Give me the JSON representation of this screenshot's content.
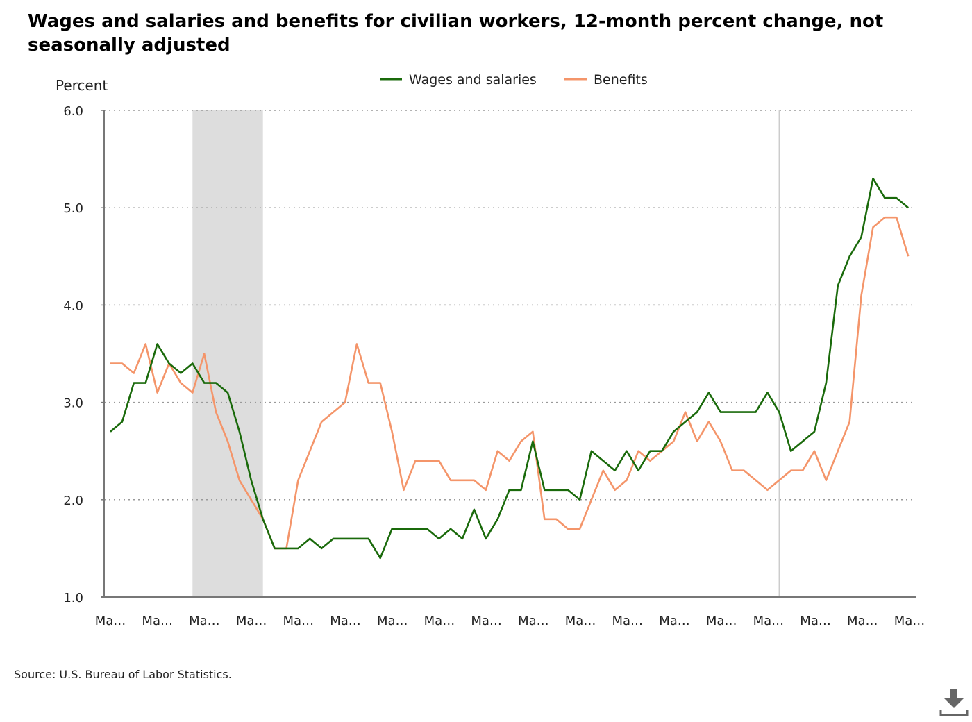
{
  "chart_data": {
    "type": "line",
    "title": "Wages and salaries and benefits for civilian workers, 12-month percent change, not seasonally adjusted",
    "ylabel": "Percent",
    "xlabel": "",
    "ylim": [
      1.0,
      6.0
    ],
    "yticks": [
      "1.0",
      "2.0",
      "3.0",
      "4.0",
      "5.0",
      "6.0"
    ],
    "x_tick_labels": [
      "Ma…",
      "Ma…",
      "Ma…",
      "Ma…",
      "Ma…",
      "Ma…",
      "Ma…",
      "Ma…",
      "Ma…",
      "Ma…",
      "Ma…",
      "Ma…",
      "Ma…",
      "Ma…",
      "Ma…",
      "Ma…",
      "Ma…",
      "Ma…"
    ],
    "grid": "horizontal dotted",
    "legend_position": "top-center",
    "shaded_period": {
      "start_index": 7.0,
      "end_index": 13.0
    },
    "reference_line_index": 57,
    "series": [
      {
        "name": "Wages and salaries",
        "color": "#1a6a0b",
        "values": [
          2.7,
          2.8,
          3.2,
          3.2,
          3.6,
          3.4,
          3.3,
          3.4,
          3.2,
          3.2,
          3.1,
          2.7,
          2.2,
          1.8,
          1.5,
          1.5,
          1.5,
          1.6,
          1.5,
          1.6,
          1.6,
          1.6,
          1.6,
          1.4,
          1.7,
          1.7,
          1.7,
          1.7,
          1.6,
          1.7,
          1.6,
          1.9,
          1.6,
          1.8,
          2.1,
          2.1,
          2.6,
          2.1,
          2.1,
          2.1,
          2.0,
          2.5,
          2.4,
          2.3,
          2.5,
          2.3,
          2.5,
          2.5,
          2.7,
          2.8,
          2.9,
          3.1,
          2.9,
          2.9,
          2.9,
          2.9,
          3.1,
          2.9,
          2.5,
          2.6,
          2.7,
          3.2,
          4.2,
          4.5,
          4.7,
          5.3,
          5.1,
          5.1,
          5.0
        ]
      },
      {
        "name": "Benefits",
        "color": "#f4956a",
        "values": [
          3.4,
          3.4,
          3.3,
          3.6,
          3.1,
          3.4,
          3.2,
          3.1,
          3.5,
          2.9,
          2.6,
          2.2,
          2.0,
          1.8,
          1.5,
          1.5,
          2.2,
          2.5,
          2.8,
          2.9,
          3.0,
          3.6,
          3.2,
          3.2,
          2.7,
          2.1,
          2.4,
          2.4,
          2.4,
          2.2,
          2.2,
          2.2,
          2.1,
          2.5,
          2.4,
          2.6,
          2.7,
          1.8,
          1.8,
          1.7,
          1.7,
          2.0,
          2.3,
          2.1,
          2.2,
          2.5,
          2.4,
          2.5,
          2.6,
          2.9,
          2.6,
          2.8,
          2.6,
          2.3,
          2.3,
          2.2,
          2.1,
          2.2,
          2.3,
          2.3,
          2.5,
          2.2,
          2.5,
          2.8,
          4.1,
          4.8,
          4.9,
          4.9,
          4.5
        ]
      }
    ]
  },
  "source": "Source: U.S. Bureau of Labor Statistics.",
  "download_icon": "download-icon"
}
